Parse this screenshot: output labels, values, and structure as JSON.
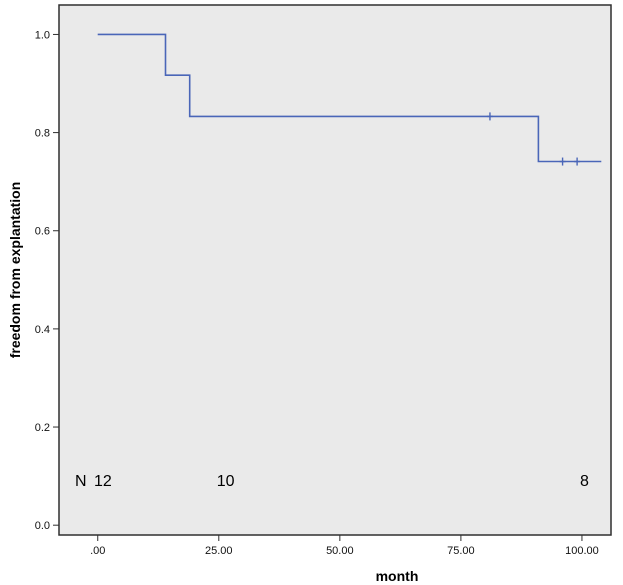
{
  "chart_data": {
    "type": "line",
    "subtype": "kaplan-meier-step",
    "xlabel": "month",
    "ylabel": "freedom from explantation",
    "xlim": [
      -8,
      106
    ],
    "ylim": [
      -0.02,
      1.06
    ],
    "x_ticks": [
      0,
      25,
      50,
      75,
      100
    ],
    "x_tick_labels": [
      ".00",
      "25.00",
      "50.00",
      "75.00",
      "100.00"
    ],
    "y_ticks": [
      0.0,
      0.2,
      0.4,
      0.6,
      0.8,
      1.0
    ],
    "y_tick_labels": [
      "0.0",
      "0.2",
      "0.4",
      "0.6",
      "0.8",
      "1.0"
    ],
    "grid": false,
    "legend": "none",
    "colors": {
      "plot_background": "#eaeaea",
      "frame": "#2f2f2f",
      "series_line": "#4a66b8"
    },
    "series": [
      {
        "steps": [
          {
            "x": 0,
            "y": 1.0
          },
          {
            "x": 14,
            "y": 1.0
          },
          {
            "x": 14,
            "y": 0.917
          },
          {
            "x": 19,
            "y": 0.917
          },
          {
            "x": 19,
            "y": 0.833
          },
          {
            "x": 91,
            "y": 0.833
          },
          {
            "x": 91,
            "y": 0.741
          },
          {
            "x": 104,
            "y": 0.741
          }
        ],
        "censored": [
          {
            "x": 81,
            "y": 0.833
          },
          {
            "x": 96,
            "y": 0.741
          },
          {
            "x": 99,
            "y": 0.741
          }
        ]
      }
    ],
    "number_at_risk": {
      "prefix": "N",
      "entries": [
        {
          "x": 0,
          "label": "12"
        },
        {
          "x": 25,
          "label": "10"
        },
        {
          "x": 100,
          "label": "8"
        }
      ]
    }
  }
}
